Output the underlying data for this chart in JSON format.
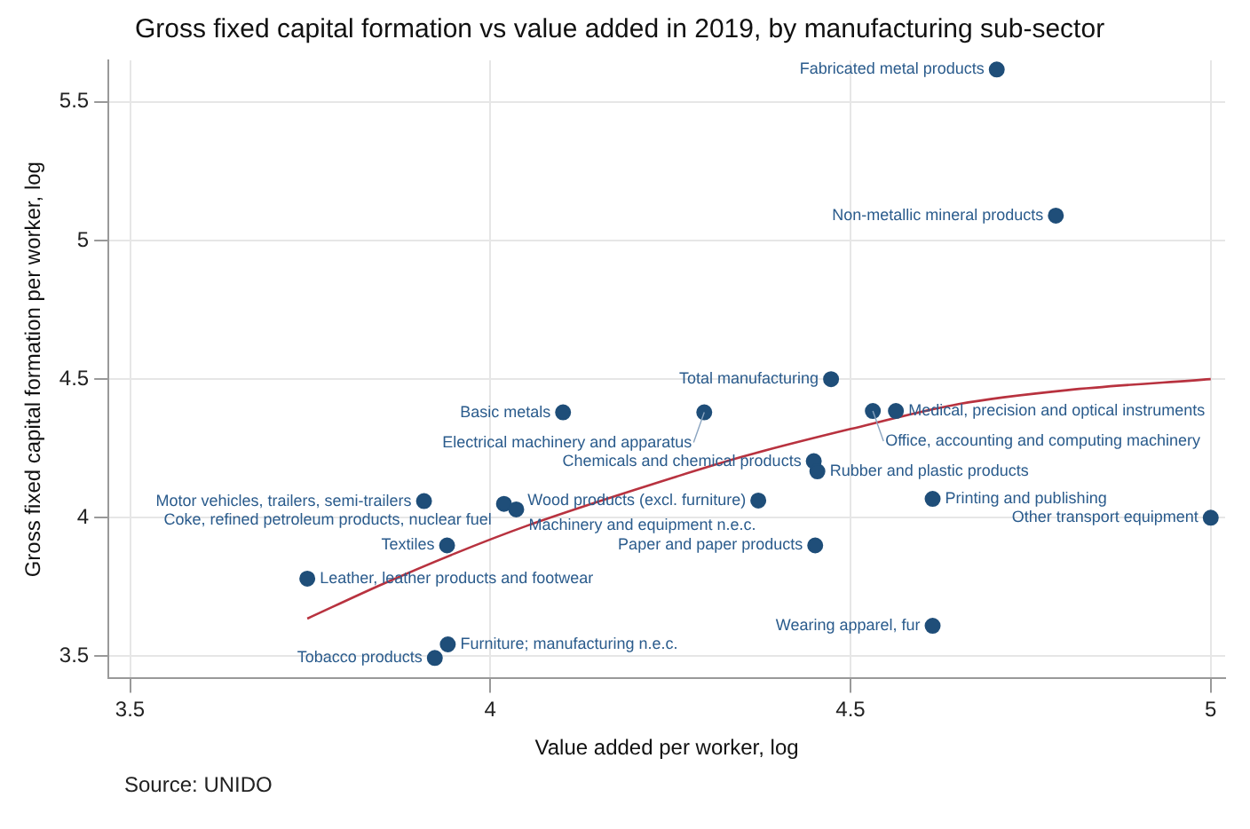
{
  "chart_data": {
    "type": "scatter",
    "title": "Gross fixed capital formation vs value added in 2019, by manufacturing sub-sector",
    "xlabel": "Value added per worker, log",
    "ylabel": "Gross fixed capital formation per worker, log",
    "series": [
      {
        "type": "scatter",
        "color": "#1f4e79",
        "marker": "circle",
        "x": [
          4.703,
          4.785,
          4.473,
          4.101,
          4.297,
          4.531,
          4.563,
          4.449,
          4.454,
          4.372,
          4.614,
          5.0,
          4.451,
          4.614,
          3.908,
          4.019,
          4.036,
          3.94,
          3.746,
          3.941,
          3.923
        ],
        "values": [
          5.617,
          5.09,
          4.5,
          4.38,
          4.38,
          4.385,
          4.385,
          4.204,
          4.167,
          4.062,
          4.068,
          4.0,
          3.9,
          3.61,
          4.06,
          4.05,
          4.03,
          3.9,
          3.78,
          3.543,
          3.494
        ]
      },
      {
        "type": "line",
        "color": "#b8323f",
        "marker": "none",
        "line_style": "solid",
        "x": [
          3.746,
          3.85,
          3.95,
          4.05,
          4.2,
          4.35,
          4.5,
          4.65,
          4.8,
          5.0
        ],
        "values": [
          3.636,
          3.76,
          3.87,
          3.97,
          4.1,
          4.22,
          4.32,
          4.41,
          4.46,
          4.5
        ]
      }
    ],
    "xlim": [
      3.47,
      5.02
    ],
    "xticks": [
      3.5,
      4,
      4.5,
      5
    ],
    "ylim": [
      3.42,
      5.65
    ],
    "yticks": [
      3.5,
      4,
      4.5,
      5,
      5.5
    ],
    "grid": true,
    "legend": false,
    "annotations": [
      {
        "text": "Fabricated metal products",
        "x": 4.703,
        "y": 5.617
      },
      {
        "text": "Non-metallic mineral products",
        "x": 4.785,
        "y": 5.09
      },
      {
        "text": "Total manufacturing",
        "x": 4.473,
        "y": 4.5
      },
      {
        "text": "Basic metals",
        "x": 4.101,
        "y": 4.38
      },
      {
        "text": "Electrical machinery and apparatus",
        "x": 4.297,
        "y": 4.38
      },
      {
        "text": "Office, accounting and computing machinery",
        "x": 4.531,
        "y": 4.385
      },
      {
        "text": "Medical, precision and optical instruments",
        "x": 4.563,
        "y": 4.385
      },
      {
        "text": "Chemicals and chemical products",
        "x": 4.449,
        "y": 4.204
      },
      {
        "text": "Rubber and plastic products",
        "x": 4.454,
        "y": 4.167
      },
      {
        "text": "Wood products (excl. furniture)",
        "x": 4.372,
        "y": 4.062
      },
      {
        "text": "Printing and publishing",
        "x": 4.614,
        "y": 4.068
      },
      {
        "text": "Other transport equipment",
        "x": 5.0,
        "y": 4.0
      },
      {
        "text": "Paper and paper products",
        "x": 4.451,
        "y": 3.9
      },
      {
        "text": "Wearing apparel, fur",
        "x": 4.614,
        "y": 3.61
      },
      {
        "text": "Motor vehicles, trailers, semi-trailers",
        "x": 3.908,
        "y": 4.06
      },
      {
        "text": "Coke, refined petroleum products, nuclear fuel",
        "x": 4.019,
        "y": 4.05
      },
      {
        "text": "Machinery and equipment n.e.c.",
        "x": 4.036,
        "y": 4.03
      },
      {
        "text": "Textiles",
        "x": 3.94,
        "y": 3.9
      },
      {
        "text": "Leather, leather products and footwear",
        "x": 3.746,
        "y": 3.78
      },
      {
        "text": "Furniture; manufacturing n.e.c.",
        "x": 3.941,
        "y": 3.543
      },
      {
        "text": "Tobacco products",
        "x": 3.923,
        "y": 3.494
      },
      "Source: UNIDO"
    ]
  }
}
